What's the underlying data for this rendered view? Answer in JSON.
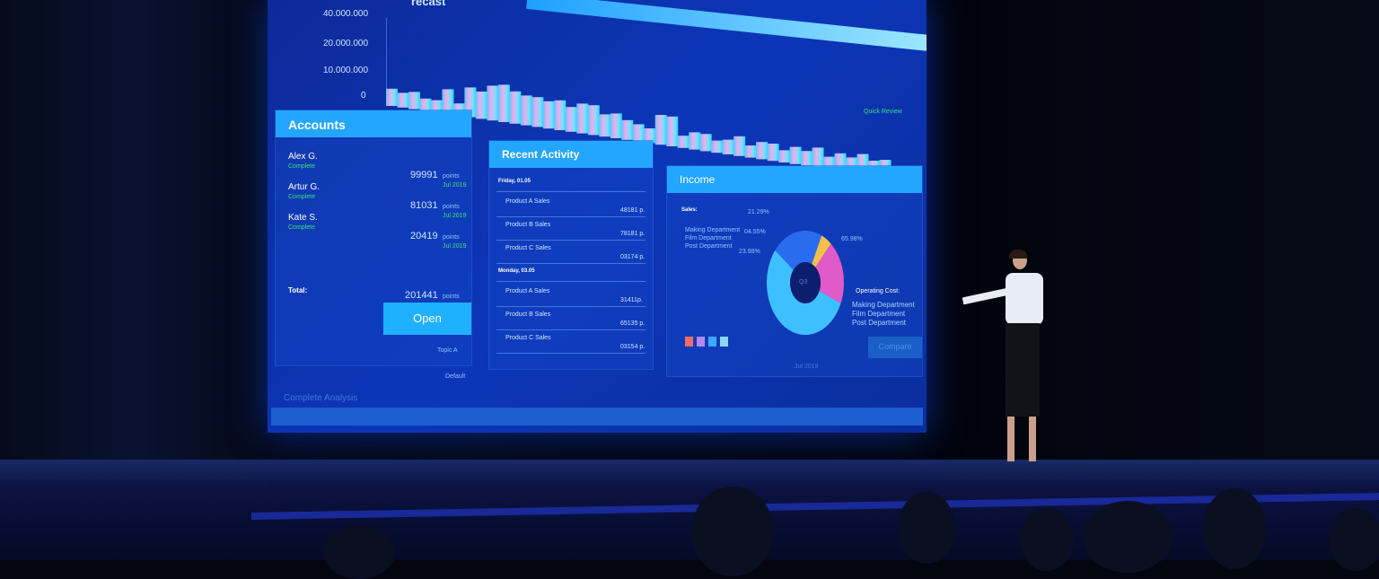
{
  "forecast": {
    "title_fragment": "recast",
    "y_ticks": [
      "40.000.000",
      "20.000.000",
      "10.000.000",
      "0"
    ],
    "quick_review": "Quick Review",
    "chart_data": {
      "type": "bar",
      "title": "recast",
      "yticks": [
        "40.000.000",
        "20.000.000",
        "10.000.000",
        "0"
      ],
      "values": [
        4,
        3,
        4,
        2,
        2,
        7,
        2,
        9,
        8,
        11,
        12,
        10,
        9,
        9,
        8,
        9,
        7,
        9,
        9,
        6,
        7,
        5,
        4,
        3,
        9,
        9,
        2,
        4,
        4,
        2,
        3,
        5,
        2,
        4,
        4,
        2,
        4,
        3,
        5,
        2,
        4,
        3,
        5,
        3,
        4
      ]
    }
  },
  "accounts": {
    "title": "Accounts",
    "items": [
      {
        "name": "Alex G.",
        "status": "Complete",
        "value": "99991",
        "unit": "points",
        "date": "Jul 2019"
      },
      {
        "name": "Artur G.",
        "status": "Complete",
        "value": "81031",
        "unit": "points",
        "date": "Jul 2019"
      },
      {
        "name": "Kate S.",
        "status": "Complete",
        "value": "20419",
        "unit": "points",
        "date": "Jul 2019"
      }
    ],
    "total_label": "Total:",
    "total_value": "201441",
    "total_unit": "points",
    "open_label": "Open",
    "topic": "Topic A",
    "default": "Default"
  },
  "activity": {
    "title": "Recent Activity",
    "groups": [
      {
        "day": "Friday, 01.05",
        "rows": [
          {
            "label": "Product A Sales",
            "value": "48181 p."
          },
          {
            "label": "Product B Sales",
            "value": "78181 p."
          },
          {
            "label": "Product C Sales",
            "value": "03174 p."
          }
        ]
      },
      {
        "day": "Monday, 03.05",
        "rows": [
          {
            "label": "Product A Sales",
            "value": "31411p."
          },
          {
            "label": "Product B Sales",
            "value": "65135 p."
          },
          {
            "label": "Product C Sales",
            "value": "03154 p."
          }
        ]
      }
    ]
  },
  "income": {
    "title": "Income",
    "sales_label": "Sales:",
    "departments": [
      "Making Department",
      "Film Department",
      "Post Department"
    ],
    "percents": [
      "21.29%",
      "04.55%",
      "23.98%",
      "65.98%"
    ],
    "center": "Q3",
    "operating_label": "Operating Cost:",
    "operating_items": [
      "Making Department",
      "Film Department",
      "Post Department"
    ],
    "compare_label": "Compare",
    "date": "Jul 2019",
    "colors": [
      "#2a6cf0",
      "#f5c04a",
      "#e05ac8",
      "#3ec0ff"
    ],
    "legend_colors": [
      "#f06a6a",
      "#b08af0",
      "#3aa8ff",
      "#8ad8ff"
    ]
  },
  "footer": {
    "analysis": "Complete Analysis"
  }
}
